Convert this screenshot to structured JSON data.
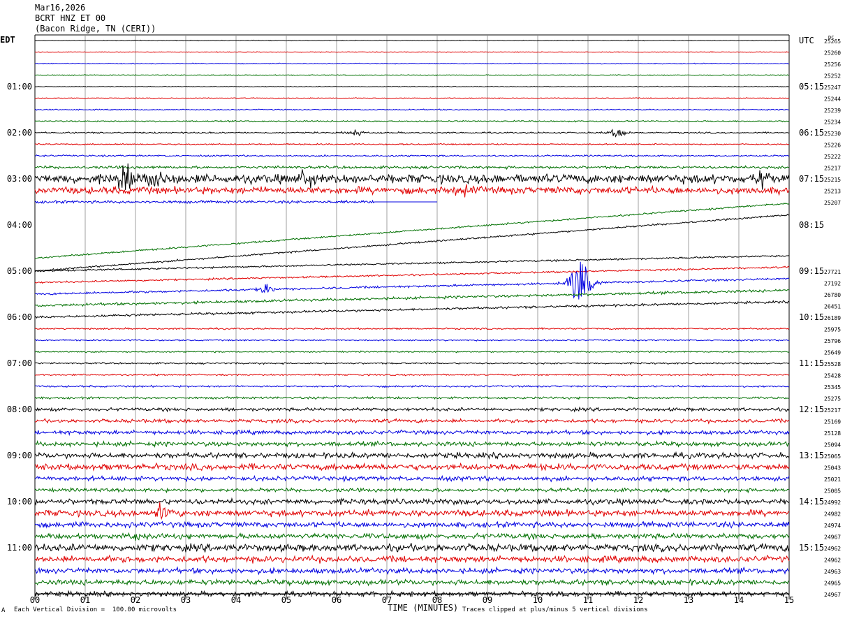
{
  "header": {
    "date": "Mar16,2026",
    "station": "BCRT HNZ ET 00",
    "location": "(Bacon Ridge, TN (CERI))"
  },
  "left_tz": "EDT",
  "right_tz": "UTC",
  "dc_label": "DC",
  "footer": {
    "scale_note": "Each Vertical Division =  100.00 microvolts",
    "xlabel": "TIME (MINUTES)",
    "clip_note": "Traces clipped at plus/minus 5 vertical divisions",
    "corner_mark": "A"
  },
  "chart_data": {
    "type": "line",
    "title": "BCRT HNZ ET 00",
    "xlabel": "TIME (MINUTES)",
    "xlim": [
      0,
      15
    ],
    "x_ticks": [
      "00",
      "01",
      "02",
      "03",
      "04",
      "05",
      "06",
      "07",
      "08",
      "09",
      "10",
      "11",
      "12",
      "13",
      "14",
      "15"
    ],
    "trace_colors": [
      "#000000",
      "#e00000",
      "#0000e0",
      "#007000"
    ],
    "rows_per_hour": 4,
    "minutes_per_row": 15,
    "left_time_labels": [
      {
        "row": 4,
        "text": "01:00"
      },
      {
        "row": 8,
        "text": "02:00"
      },
      {
        "row": 12,
        "text": "03:00"
      },
      {
        "row": 16,
        "text": "04:00"
      },
      {
        "row": 20,
        "text": "05:00"
      },
      {
        "row": 24,
        "text": "06:00"
      },
      {
        "row": 28,
        "text": "07:00"
      },
      {
        "row": 32,
        "text": "08:00"
      },
      {
        "row": 36,
        "text": "09:00"
      },
      {
        "row": 40,
        "text": "10:00"
      },
      {
        "row": 44,
        "text": "11:00"
      }
    ],
    "right_time_labels": [
      {
        "row": 0,
        "text": "UTC"
      },
      {
        "row": 4,
        "text": "05:15"
      },
      {
        "row": 8,
        "text": "06:15"
      },
      {
        "row": 12,
        "text": "07:15"
      },
      {
        "row": 16,
        "text": "08:15"
      },
      {
        "row": 20,
        "text": "09:15"
      },
      {
        "row": 24,
        "text": "10:15"
      },
      {
        "row": 28,
        "text": "11:15"
      },
      {
        "row": 32,
        "text": "12:15"
      },
      {
        "row": 36,
        "text": "13:15"
      },
      {
        "row": 40,
        "text": "14:15"
      },
      {
        "row": 44,
        "text": "15:15"
      }
    ],
    "dc_offsets": [
      "25265",
      "25260",
      "25256",
      "25252",
      "25247",
      "25244",
      "25239",
      "25234",
      "25230",
      "25226",
      "25222",
      "25217",
      "25215",
      "25213",
      "25207",
      "",
      "",
      "",
      "",
      "",
      "27721",
      "27192",
      "26780",
      "26451",
      "26189",
      "25975",
      "25796",
      "25649",
      "25528",
      "25428",
      "25345",
      "25275",
      "25217",
      "25169",
      "25128",
      "25094",
      "25065",
      "25043",
      "25021",
      "25005",
      "24992",
      "24982",
      "24974",
      "24967",
      "24962",
      "24962",
      "24963",
      "24965",
      "24967"
    ],
    "row_noise": [
      0.4,
      0.4,
      0.5,
      0.5,
      0.4,
      0.5,
      0.6,
      0.8,
      0.8,
      0.8,
      0.9,
      1.5,
      5.0,
      4.0,
      1.5,
      0,
      0,
      0,
      0,
      0,
      1.0,
      1.0,
      1.2,
      1.5,
      1.3,
      0.9,
      0.8,
      0.8,
      0.9,
      0.9,
      1.0,
      1.2,
      1.8,
      2.0,
      2.2,
      2.5,
      3.0,
      3.5,
      2.5,
      2.0,
      3.0,
      3.5,
      3.0,
      3.0,
      4.0,
      3.5,
      3.0,
      3.0,
      2.5
    ],
    "events": [
      {
        "row": 12,
        "x": 1.8,
        "amp": 22
      },
      {
        "row": 12,
        "x": 2.4,
        "amp": 20
      },
      {
        "row": 12,
        "x": 5.4,
        "amp": 18
      },
      {
        "row": 12,
        "x": 14.5,
        "amp": 16
      },
      {
        "row": 13,
        "x": 8.5,
        "amp": 10
      },
      {
        "row": 22,
        "x": 10.85,
        "amp": 42
      },
      {
        "row": 22,
        "x": 4.6,
        "amp": 8
      },
      {
        "row": 41,
        "x": 2.5,
        "amp": 10
      },
      {
        "row": 43,
        "x": 2.0,
        "amp": 9
      },
      {
        "row": 8,
        "x": 6.4,
        "amp": 5
      },
      {
        "row": 8,
        "x": 11.6,
        "amp": 8
      }
    ],
    "drift_segment": {
      "start_row": 14,
      "break_x": 6.75
    }
  }
}
